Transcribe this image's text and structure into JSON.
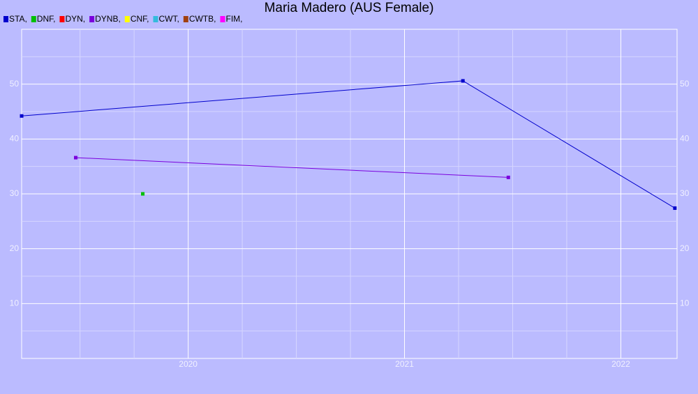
{
  "chart_data": {
    "type": "line",
    "title": "Maria Madero (AUS Female)",
    "series": [
      {
        "name": "STA,",
        "color": "#0000cc",
        "x": [
          2019.23,
          2021.27,
          2022.25
        ],
        "values": [
          44.2,
          50.6,
          27.4
        ]
      },
      {
        "name": "DNF,",
        "color": "#00c000",
        "x": [
          2019.79
        ],
        "values": [
          30
        ]
      },
      {
        "name": "DYN,",
        "color": "#ff0000",
        "x": [],
        "values": []
      },
      {
        "name": "DYNB,",
        "color": "#7a00dd",
        "x": [
          2019.48,
          2021.48
        ],
        "values": [
          36.6,
          33.0
        ]
      },
      {
        "name": "CNF,",
        "color": "#ffff00",
        "x": [],
        "values": []
      },
      {
        "name": "CWT,",
        "color": "#33bbdd",
        "x": [],
        "values": []
      },
      {
        "name": "CWTB,",
        "color": "#a04010",
        "x": [],
        "values": []
      },
      {
        "name": "FIM,",
        "color": "#ff00ff",
        "x": [],
        "values": []
      }
    ],
    "xlim": [
      2019.23,
      2022.26
    ],
    "xticks": [
      2020,
      2021,
      2022
    ],
    "xminorticks": [
      2019.5,
      2019.75,
      2020.25,
      2020.5,
      2020.75,
      2021.25,
      2021.5,
      2021.75
    ],
    "ylim": [
      0,
      60
    ],
    "yticks": [
      10,
      20,
      30,
      40,
      50
    ],
    "yminorticks": [
      5,
      15,
      25,
      35,
      45,
      55
    ],
    "grid": true,
    "legend": "top-left"
  }
}
